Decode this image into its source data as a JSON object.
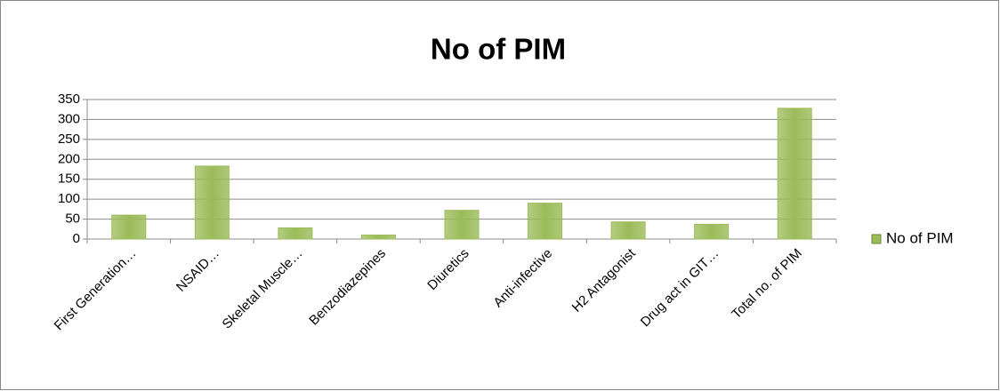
{
  "chart_data": {
    "type": "bar",
    "title": "No of PIM",
    "categories": [
      "First Generation…",
      "NSAID…",
      "Skeletal Muscle…",
      "Benzodiazepines",
      "Diuretics",
      "Anti-infective",
      "H2 Antagonist",
      "Drug act in GIT…",
      "Total no. of PIM"
    ],
    "series": [
      {
        "name": "No of PIM",
        "color": "#9bbb59",
        "values": [
          60,
          183,
          28,
          10,
          72,
          90,
          43,
          37,
          328
        ]
      }
    ],
    "ylim": [
      0,
      350
    ],
    "yticks": [
      0,
      50,
      100,
      150,
      200,
      250,
      300,
      350
    ],
    "grid": true
  }
}
